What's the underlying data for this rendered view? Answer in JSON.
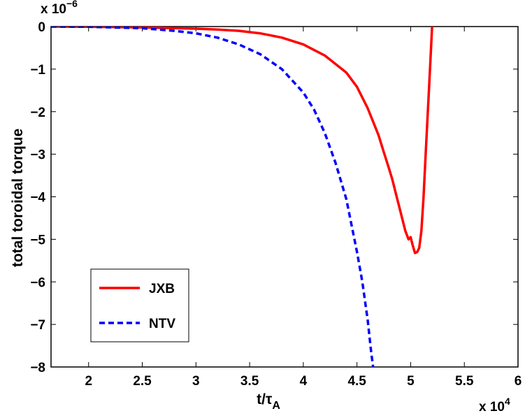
{
  "chart_data": {
    "type": "line",
    "title": "",
    "xlabel": "t/",
    "xlabel_symbol": "τ",
    "xlabel_subscript": "A",
    "ylabel": "total toroidal torque",
    "x_multiplier": {
      "base": "x 10",
      "exponent": "4"
    },
    "y_multiplier": {
      "base": "x 10",
      "exponent": "−6"
    },
    "xlim": [
      1.65,
      6.0
    ],
    "ylim": [
      -8,
      0
    ],
    "x_ticks": [
      2,
      2.5,
      3,
      3.5,
      4,
      4.5,
      5,
      5.5,
      6
    ],
    "x_tick_labels": [
      "2",
      "2.5",
      "3",
      "3.5",
      "4",
      "4.5",
      "5",
      "5.5",
      "6"
    ],
    "y_ticks": [
      0,
      -1,
      -2,
      -3,
      -4,
      -5,
      -6,
      -7,
      -8
    ],
    "y_tick_labels": [
      "0",
      "−1",
      "−2",
      "−3",
      "−4",
      "−5",
      "−6",
      "−7",
      "−8"
    ],
    "grid": false,
    "legend_position": "lower-left",
    "series": [
      {
        "name": "JXB",
        "color": "#ff0000",
        "dash": "solid",
        "x": [
          1.65,
          2.0,
          2.5,
          3.0,
          3.2,
          3.4,
          3.6,
          3.8,
          4.0,
          4.2,
          4.4,
          4.5,
          4.6,
          4.7,
          4.75,
          4.8,
          4.83,
          4.86,
          4.9,
          4.95,
          4.98,
          5.0,
          5.02,
          5.04,
          5.06,
          5.08,
          5.1,
          5.12,
          5.14,
          5.16,
          5.18,
          5.2
        ],
        "y": [
          0,
          -0.005,
          -0.02,
          -0.05,
          -0.07,
          -0.1,
          -0.16,
          -0.26,
          -0.42,
          -0.68,
          -1.08,
          -1.42,
          -1.92,
          -2.55,
          -2.95,
          -3.35,
          -3.6,
          -3.9,
          -4.3,
          -4.8,
          -5.0,
          -4.95,
          -5.15,
          -5.32,
          -5.3,
          -5.2,
          -4.8,
          -4.0,
          -3.0,
          -2.0,
          -1.0,
          0
        ]
      },
      {
        "name": "NTV",
        "color": "#0000ff",
        "dash": "dashed",
        "x": [
          1.65,
          2.0,
          2.5,
          2.8,
          3.0,
          3.2,
          3.4,
          3.6,
          3.8,
          4.0,
          4.1,
          4.2,
          4.3,
          4.4,
          4.5,
          4.55,
          4.6,
          4.63,
          4.65
        ],
        "y": [
          0,
          -0.005,
          -0.04,
          -0.1,
          -0.16,
          -0.26,
          -0.42,
          -0.65,
          -1.0,
          -1.55,
          -1.95,
          -2.5,
          -3.2,
          -4.05,
          -5.3,
          -6.0,
          -6.9,
          -7.6,
          -8.0
        ]
      }
    ]
  }
}
